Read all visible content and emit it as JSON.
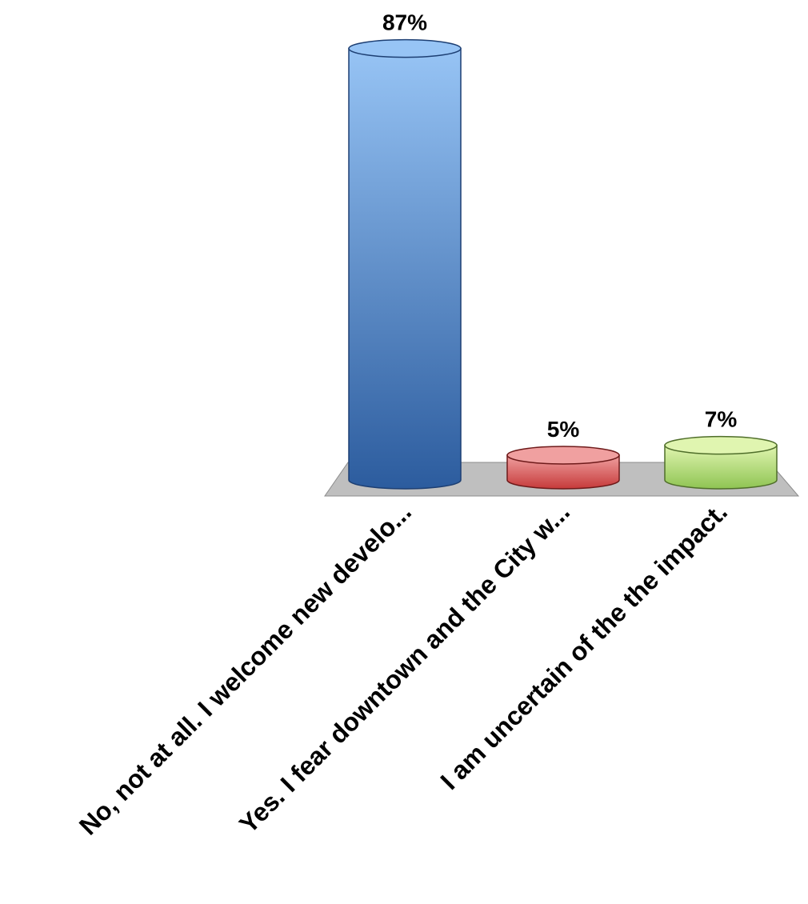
{
  "chart_data": {
    "type": "bar",
    "style": "3d-cylinder",
    "title": "",
    "xlabel": "",
    "ylabel": "",
    "ylim": [
      0,
      100
    ],
    "grid": false,
    "legend": "none",
    "categories": [
      "No, not at all. I welcome new develo...",
      "Yes. I fear downtown and the City w...",
      "I am uncertain of the the impact."
    ],
    "values": [
      87,
      5,
      7
    ],
    "value_labels": [
      "87%",
      "5%",
      "7%"
    ],
    "colors": [
      {
        "top": "#97c4f5",
        "bottom": "#2c5c9e",
        "edge": "#1d3f73"
      },
      {
        "top": "#f0a0a0",
        "bottom": "#c63a3a",
        "edge": "#6e1a1a"
      },
      {
        "top": "#e0f5b0",
        "bottom": "#8fc453",
        "edge": "#4f6e2a"
      }
    ],
    "floor_color": "#bfbfbf"
  }
}
